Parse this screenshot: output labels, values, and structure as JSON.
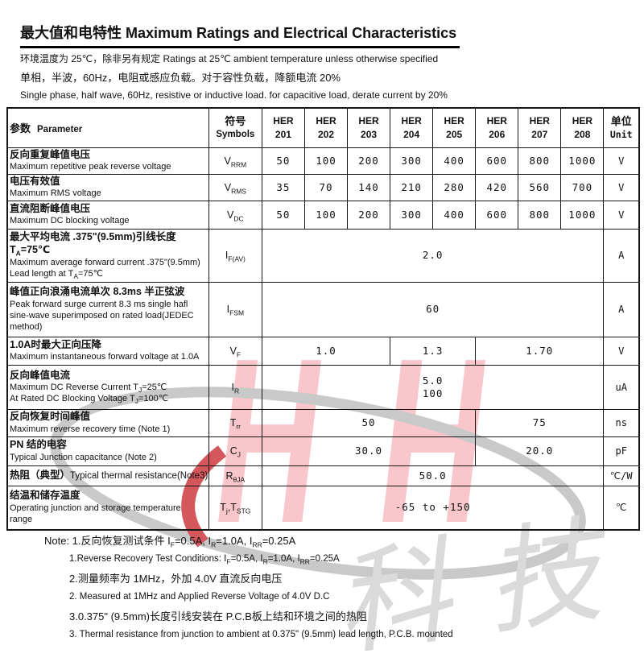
{
  "page": {
    "title": "最大值和电特性 Maximum Ratings and Electrical Characteristics",
    "subtitle_line1": "环境温度为 25℃，除非另有规定 Ratings at 25℃ ambient temperature unless otherwise specified",
    "subtitle_line2": "单相，半波，60Hz，电阻或感应负载。对于容性负载，降额电流 20%",
    "subtitle_line3": "Single phase, half wave, 60Hz, resistive or inductive load. for capacitive load, derate current by 20%"
  },
  "table": {
    "header": {
      "param_zh": "参数",
      "param_en": "Parameter",
      "symbol_zh": "符号",
      "symbol_en": "Symbols",
      "models": [
        {
          "l1": "HER",
          "l2": "201"
        },
        {
          "l1": "HER",
          "l2": "202"
        },
        {
          "l1": "HER",
          "l2": "203"
        },
        {
          "l1": "HER",
          "l2": "204"
        },
        {
          "l1": "HER",
          "l2": "205"
        },
        {
          "l1": "HER",
          "l2": "206"
        },
        {
          "l1": "HER",
          "l2": "207"
        },
        {
          "l1": "HER",
          "l2": "208"
        }
      ],
      "unit_zh": "单位",
      "unit_en": "Unit"
    },
    "rows": [
      {
        "name": "vrrm",
        "param": [
          {
            "cls": "zh",
            "segs": [
              {
                "t": "反向重复峰值电压"
              }
            ]
          },
          {
            "cls": "en",
            "segs": [
              {
                "t": "Maximum repetitive peak reverse voltage"
              }
            ]
          }
        ],
        "symbol": [
          {
            "t": "V"
          },
          {
            "t": "RRM",
            "sub": true
          }
        ],
        "cells": [
          {
            "span": 1,
            "v": "50"
          },
          {
            "span": 1,
            "v": "100"
          },
          {
            "span": 1,
            "v": "200"
          },
          {
            "span": 1,
            "v": "300"
          },
          {
            "span": 1,
            "v": "400"
          },
          {
            "span": 1,
            "v": "600"
          },
          {
            "span": 1,
            "v": "800"
          },
          {
            "span": 1,
            "v": "1000"
          }
        ],
        "unit": "V"
      },
      {
        "name": "vrms",
        "param": [
          {
            "cls": "zh",
            "segs": [
              {
                "t": "电压有效值"
              }
            ]
          },
          {
            "cls": "en",
            "segs": [
              {
                "t": "Maximum RMS voltage"
              }
            ]
          }
        ],
        "symbol": [
          {
            "t": "V"
          },
          {
            "t": "RMS",
            "sub": true
          }
        ],
        "cells": [
          {
            "span": 1,
            "v": "35"
          },
          {
            "span": 1,
            "v": "70"
          },
          {
            "span": 1,
            "v": "140"
          },
          {
            "span": 1,
            "v": "210"
          },
          {
            "span": 1,
            "v": "280"
          },
          {
            "span": 1,
            "v": "420"
          },
          {
            "span": 1,
            "v": "560"
          },
          {
            "span": 1,
            "v": "700"
          }
        ],
        "unit": "V"
      },
      {
        "name": "vdc",
        "param": [
          {
            "cls": "zh",
            "segs": [
              {
                "t": "直流阻断峰值电压"
              }
            ]
          },
          {
            "cls": "en",
            "segs": [
              {
                "t": "Maximum DC blocking voltage"
              }
            ]
          }
        ],
        "symbol": [
          {
            "t": "V"
          },
          {
            "t": "DC",
            "sub": true
          }
        ],
        "cells": [
          {
            "span": 1,
            "v": "50"
          },
          {
            "span": 1,
            "v": "100"
          },
          {
            "span": 1,
            "v": "200"
          },
          {
            "span": 1,
            "v": "300"
          },
          {
            "span": 1,
            "v": "400"
          },
          {
            "span": 1,
            "v": "600"
          },
          {
            "span": 1,
            "v": "800"
          },
          {
            "span": 1,
            "v": "1000"
          }
        ],
        "unit": "V"
      },
      {
        "name": "ifav",
        "param": [
          {
            "cls": "zh",
            "segs": [
              {
                "t": "最大平均电流  .375\"(9.5mm)引线长度"
              }
            ]
          },
          {
            "cls": "zh",
            "segs": [
              {
                "t": "  T"
              },
              {
                "t": "A",
                "sub": true
              },
              {
                "t": "=75℃"
              }
            ]
          },
          {
            "cls": "en",
            "segs": [
              {
                "t": "Maximum average forward current .375\"(9.5mm)"
              }
            ]
          },
          {
            "cls": "en",
            "segs": [
              {
                "t": "Lead length at T"
              },
              {
                "t": "A",
                "sub": true
              },
              {
                "t": "=75℃"
              }
            ]
          }
        ],
        "symbol": [
          {
            "t": "I"
          },
          {
            "t": "F(AV)",
            "sub": true
          }
        ],
        "cells": [
          {
            "span": 8,
            "v": "2.0"
          }
        ],
        "unit": "A"
      },
      {
        "name": "ifsm",
        "param": [
          {
            "cls": "zh",
            "segs": [
              {
                "t": "峰值正向浪涌电流单次 8.3ms 半正弦波"
              }
            ]
          },
          {
            "cls": "en",
            "segs": [
              {
                "t": "Peak forward surge current 8.3 ms single hafl"
              }
            ]
          },
          {
            "cls": "en",
            "segs": [
              {
                "t": "sine-wave superimposed on rated load(JEDEC"
              }
            ]
          },
          {
            "cls": "en",
            "segs": [
              {
                "t": "method)"
              }
            ]
          }
        ],
        "symbol": [
          {
            "t": "I"
          },
          {
            "t": "FSM",
            "sub": true
          }
        ],
        "cells": [
          {
            "span": 8,
            "v": "60"
          }
        ],
        "unit": "A"
      },
      {
        "name": "vf",
        "param": [
          {
            "cls": "zh",
            "segs": [
              {
                "t": "1.0A时最大正向压降"
              }
            ]
          },
          {
            "cls": "en",
            "segs": [
              {
                "t": "Maximum instantaneous forward voltage at 1.0A"
              }
            ]
          }
        ],
        "symbol": [
          {
            "t": "V"
          },
          {
            "t": "F",
            "sub": true
          }
        ],
        "cells": [
          {
            "span": 3,
            "v": "1.0"
          },
          {
            "span": 2,
            "v": "1.3"
          },
          {
            "span": 3,
            "v": "1.70"
          }
        ],
        "unit": "V"
      },
      {
        "name": "ir",
        "param": [
          {
            "cls": "zh",
            "segs": [
              {
                "t": "反向峰值电流"
              }
            ]
          },
          {
            "cls": "en",
            "segs": [
              {
                "t": "Maximum DC Reverse Current    T"
              },
              {
                "t": "J",
                "sub": true
              },
              {
                "t": "=25℃"
              }
            ]
          },
          {
            "cls": "en",
            "segs": [
              {
                "t": "At Rated DC Blocking Voltage    T"
              },
              {
                "t": "J",
                "sub": true
              },
              {
                "t": "=100℃"
              }
            ]
          }
        ],
        "symbol": [
          {
            "t": "I"
          },
          {
            "t": "R",
            "sub": true
          }
        ],
        "cells": [
          {
            "span": 8,
            "v": "5.0\n100"
          }
        ],
        "unit": "uA"
      },
      {
        "name": "trr",
        "param": [
          {
            "cls": "zh",
            "segs": [
              {
                "t": "反向恢复时间峰值"
              }
            ]
          },
          {
            "cls": "en",
            "segs": [
              {
                "t": "Maximum reverse recovery time (Note 1)"
              }
            ]
          }
        ],
        "symbol": [
          {
            "t": "T"
          },
          {
            "t": "rr",
            "sub": true
          }
        ],
        "cells": [
          {
            "span": 5,
            "v": "50"
          },
          {
            "span": 3,
            "v": "75"
          }
        ],
        "unit": "ns"
      },
      {
        "name": "cj",
        "param": [
          {
            "cls": "zh",
            "segs": [
              {
                "t": "PN 结的电容"
              }
            ]
          },
          {
            "cls": "en",
            "segs": [
              {
                "t": "Typical Junction capacitance (Note 2)"
              }
            ]
          }
        ],
        "symbol": [
          {
            "t": "C"
          },
          {
            "t": "J",
            "sub": true
          }
        ],
        "cells": [
          {
            "span": 5,
            "v": "30.0"
          },
          {
            "span": 3,
            "v": "20.0"
          }
        ],
        "unit": "pF"
      },
      {
        "name": "rthja",
        "param": [
          {
            "cls": "zh",
            "segs": [
              {
                "t": "热阻（典型）"
              },
              {
                "t": "Typical thermal resistance(Note3)",
                "cls": "en-in"
              }
            ]
          }
        ],
        "symbol": [
          {
            "t": "R"
          },
          {
            "t": "θJA",
            "sub": true
          }
        ],
        "cells": [
          {
            "span": 8,
            "v": "50.0"
          }
        ],
        "unit": "℃/W"
      },
      {
        "name": "tjtstg",
        "param": [
          {
            "cls": "zh",
            "segs": [
              {
                "t": "结温和储存温度"
              }
            ]
          },
          {
            "cls": "en",
            "segs": [
              {
                "t": "Operating junction and storage temperature"
              }
            ]
          },
          {
            "cls": "en",
            "segs": [
              {
                "t": "range"
              }
            ]
          }
        ],
        "symbol": [
          {
            "t": "T"
          },
          {
            "t": "j",
            "sub": true
          },
          {
            "t": ",T"
          },
          {
            "t": "STG",
            "sub": true
          }
        ],
        "cells": [
          {
            "span": 8,
            "v": "-65 to +150"
          }
        ],
        "unit": "℃"
      }
    ]
  },
  "notes": [
    {
      "cls": "zh",
      "indent": false,
      "segs": [
        {
          "t": "Note: 1.反向恢复测试条件 I"
        },
        {
          "t": "F",
          "sub": true
        },
        {
          "t": "=0.5A, I"
        },
        {
          "t": "R",
          "sub": true
        },
        {
          "t": "=1.0A, I"
        },
        {
          "t": "RR",
          "sub": true
        },
        {
          "t": "=0.25A"
        }
      ]
    },
    {
      "cls": "en",
      "indent": true,
      "segs": [
        {
          "t": "1.Reverse Recovery Test Conditions: I"
        },
        {
          "t": "F",
          "sub": true
        },
        {
          "t": "=0.5A, I"
        },
        {
          "t": "R",
          "sub": true
        },
        {
          "t": "=1.0A, I"
        },
        {
          "t": "RR",
          "sub": true
        },
        {
          "t": "=0.25A"
        }
      ]
    },
    {
      "cls": "zh",
      "indent": true,
      "segs": [
        {
          "t": "2.测量频率为 1MHz，外加 4.0V 直流反向电压"
        }
      ]
    },
    {
      "cls": "en",
      "indent": true,
      "segs": [
        {
          "t": "2. Measured at 1MHz and Applied Reverse Voltage of 4.0V D.C"
        }
      ]
    },
    {
      "cls": "zh",
      "indent": true,
      "segs": [
        {
          "t": "3.0.375\" (9.5mm)长度引线安装在 P.C.B板上结和环境之间的热阻"
        }
      ]
    },
    {
      "cls": "en",
      "indent": true,
      "segs": [
        {
          "t": "3. Thermal resistance from junction to ambient at 0.375\" (9.5mm) lead length, P.C.B. mounted"
        }
      ]
    }
  ],
  "watermark": {
    "letter": "H",
    "script_text": "科技",
    "pink": "#f8c6cb",
    "accent_red": "#d4575c",
    "ellipse_gray": "#c9c9c9",
    "script_gray": "#dadada"
  }
}
